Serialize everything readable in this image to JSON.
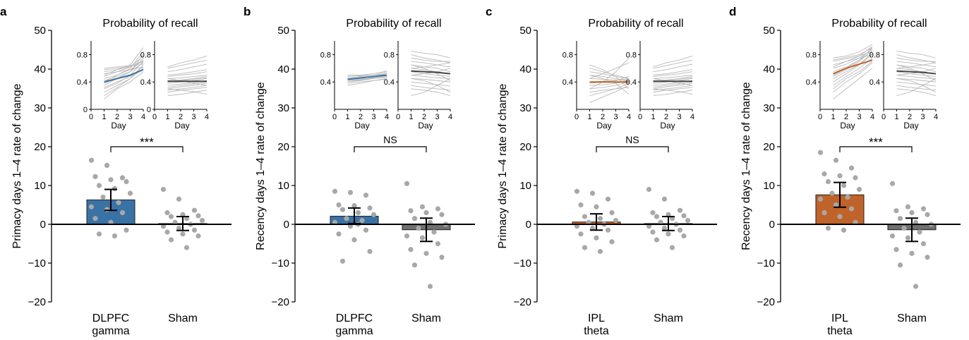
{
  "panel_letters": [
    "a",
    "b",
    "c",
    "d"
  ],
  "colors": {
    "dlpfc": "#3b72a6",
    "ipl": "#c0632a",
    "sham": "#6f6f6f",
    "dots": "#a8a8a8",
    "subject_lines": "#b9b9b9",
    "inset_sham_mean": "#444444"
  },
  "chart_data": [
    {
      "type": "bar",
      "panel": "a",
      "ylabel": "Primacy days 1–4 rate of change",
      "ylim": [
        -20,
        50
      ],
      "yticks": [
        -20,
        -10,
        0,
        10,
        20,
        30,
        40,
        50
      ],
      "categories": [
        "DLPFC\ngamma",
        "Sham"
      ],
      "bar_colors": [
        "dlpfc",
        "sham"
      ],
      "values": [
        6.3,
        0.2
      ],
      "error": [
        [
          3.6,
          9.0
        ],
        [
          -1.6,
          2.0
        ]
      ],
      "points": [
        [
          16.5,
          15.2,
          12.0,
          12.3,
          11.5,
          11.0,
          10.0,
          9.2,
          8.0,
          7.0,
          5.6,
          4.5,
          3.8,
          3.0,
          1.5,
          0.5,
          -1.5,
          -2.5,
          -3.0
        ],
        [
          9.0,
          6.5,
          3.6,
          3.0,
          2.5,
          2.2,
          2.0,
          1.5,
          1.0,
          0.5,
          0.0,
          -0.5,
          -1.0,
          -1.5,
          -2.0,
          -2.5,
          -3.0,
          -4.0,
          -6.0
        ]
      ],
      "significance": "***",
      "inset": {
        "title": "Probability of recall",
        "xlabel": "Day",
        "x": [
          1,
          2,
          3,
          4
        ],
        "xticks": [
          0,
          1,
          2,
          3,
          4
        ],
        "yticks": [
          0,
          0.4,
          0.8
        ],
        "ylim": [
          0,
          1
        ],
        "active_color": "dlpfc",
        "active_mean": [
          0.4,
          0.45,
          0.5,
          0.58
        ],
        "sham_mean": [
          0.41,
          0.41,
          0.41,
          0.41
        ],
        "active_lines": [
          [
            0.15,
            0.3,
            0.4,
            0.55
          ],
          [
            0.2,
            0.32,
            0.45,
            0.65
          ],
          [
            0.25,
            0.35,
            0.45,
            0.6
          ],
          [
            0.3,
            0.38,
            0.5,
            0.7
          ],
          [
            0.32,
            0.4,
            0.48,
            0.62
          ],
          [
            0.35,
            0.45,
            0.55,
            0.75
          ],
          [
            0.38,
            0.45,
            0.55,
            0.8
          ],
          [
            0.4,
            0.5,
            0.6,
            0.85
          ],
          [
            0.42,
            0.48,
            0.55,
            0.68
          ],
          [
            0.45,
            0.5,
            0.58,
            0.72
          ],
          [
            0.48,
            0.55,
            0.62,
            0.78
          ],
          [
            0.5,
            0.58,
            0.65,
            0.9
          ],
          [
            0.52,
            0.55,
            0.58,
            0.62
          ],
          [
            0.55,
            0.58,
            0.62,
            0.7
          ],
          [
            0.58,
            0.6,
            0.63,
            0.66
          ],
          [
            0.6,
            0.62,
            0.64,
            0.7
          ]
        ],
        "sham_lines": [
          [
            0.2,
            0.22,
            0.25,
            0.28
          ],
          [
            0.25,
            0.28,
            0.3,
            0.32
          ],
          [
            0.28,
            0.3,
            0.32,
            0.35
          ],
          [
            0.3,
            0.33,
            0.35,
            0.38
          ],
          [
            0.32,
            0.35,
            0.37,
            0.4
          ],
          [
            0.35,
            0.37,
            0.39,
            0.42
          ],
          [
            0.38,
            0.4,
            0.42,
            0.45
          ],
          [
            0.4,
            0.42,
            0.44,
            0.46
          ],
          [
            0.42,
            0.43,
            0.45,
            0.48
          ],
          [
            0.45,
            0.46,
            0.48,
            0.5
          ],
          [
            0.48,
            0.5,
            0.52,
            0.55
          ],
          [
            0.5,
            0.52,
            0.55,
            0.58
          ],
          [
            0.55,
            0.58,
            0.62,
            0.66
          ],
          [
            0.6,
            0.64,
            0.68,
            0.72
          ],
          [
            0.62,
            0.68,
            0.72,
            0.78
          ],
          [
            0.3,
            0.28,
            0.26,
            0.22
          ],
          [
            0.45,
            0.42,
            0.38,
            0.35
          ]
        ]
      }
    },
    {
      "type": "bar",
      "panel": "b",
      "ylabel": "Recency days 1–4 rate of change",
      "ylim": [
        -20,
        50
      ],
      "yticks": [
        -20,
        -10,
        0,
        10,
        20,
        30,
        40,
        50
      ],
      "categories": [
        "DLPFC\ngamma",
        "Sham"
      ],
      "bar_colors": [
        "dlpfc",
        "sham"
      ],
      "values": [
        2.1,
        -1.4
      ],
      "error": [
        [
          0.2,
          4.2
        ],
        [
          -4.4,
          1.6
        ]
      ],
      "points": [
        [
          8.5,
          8.2,
          7.5,
          5.0,
          4.8,
          4.2,
          3.8,
          3.0,
          2.5,
          1.5,
          1.0,
          0.5,
          -0.5,
          -1.5,
          -2.5,
          -4.0,
          -7.0,
          -9.5,
          0.0
        ],
        [
          10.5,
          4.5,
          4.0,
          3.5,
          3.0,
          2.5,
          1.5,
          0.5,
          0.0,
          -1.0,
          -2.0,
          -3.0,
          -3.5,
          -5.0,
          -6.5,
          -7.5,
          -8.5,
          -10.5,
          -16.0
        ]
      ],
      "significance": "NS",
      "inset": {
        "title": "Probability of recall",
        "xlabel": "Day",
        "x": [
          1,
          2,
          3,
          4
        ],
        "xticks": [
          0,
          1,
          2,
          3,
          4
        ],
        "yticks": [
          0.4,
          0.8
        ],
        "ylim": [
          0,
          1
        ],
        "active_color": "dlpfc",
        "active_mean": [
          0.44,
          0.46,
          0.48,
          0.5
        ],
        "sham_mean": [
          0.56,
          0.55,
          0.54,
          0.52
        ],
        "active_lines": [
          [
            0.35,
            0.38,
            0.42,
            0.45
          ],
          [
            0.38,
            0.4,
            0.42,
            0.44
          ],
          [
            0.4,
            0.42,
            0.45,
            0.48
          ],
          [
            0.42,
            0.43,
            0.45,
            0.47
          ],
          [
            0.44,
            0.45,
            0.48,
            0.52
          ],
          [
            0.46,
            0.48,
            0.5,
            0.55
          ],
          [
            0.48,
            0.49,
            0.5,
            0.52
          ],
          [
            0.5,
            0.5,
            0.52,
            0.56
          ],
          [
            0.4,
            0.43,
            0.47,
            0.53
          ],
          [
            0.43,
            0.44,
            0.46,
            0.49
          ]
        ],
        "sham_lines": [
          [
            0.85,
            0.82,
            0.8,
            0.75
          ],
          [
            0.8,
            0.75,
            0.72,
            0.68
          ],
          [
            0.75,
            0.72,
            0.7,
            0.7
          ],
          [
            0.7,
            0.68,
            0.65,
            0.62
          ],
          [
            0.65,
            0.62,
            0.6,
            0.55
          ],
          [
            0.6,
            0.58,
            0.55,
            0.52
          ],
          [
            0.55,
            0.52,
            0.5,
            0.48
          ],
          [
            0.5,
            0.48,
            0.46,
            0.45
          ],
          [
            0.45,
            0.44,
            0.42,
            0.4
          ],
          [
            0.4,
            0.38,
            0.36,
            0.34
          ],
          [
            0.35,
            0.32,
            0.3,
            0.28
          ],
          [
            0.3,
            0.28,
            0.25,
            0.2
          ],
          [
            0.2,
            0.25,
            0.35,
            0.45
          ],
          [
            0.5,
            0.52,
            0.55,
            0.6
          ],
          [
            0.6,
            0.62,
            0.65,
            0.68
          ],
          [
            0.65,
            0.6,
            0.52,
            0.42
          ],
          [
            0.45,
            0.42,
            0.35,
            0.25
          ]
        ]
      }
    },
    {
      "type": "bar",
      "panel": "c",
      "ylabel": "Primacy days 1–4 rate of change",
      "ylim": [
        -20,
        50
      ],
      "yticks": [
        -20,
        -10,
        0,
        10,
        20,
        30,
        40,
        50
      ],
      "categories": [
        "IPL\ntheta",
        "Sham"
      ],
      "bar_colors": [
        "ipl",
        "sham"
      ],
      "values": [
        0.6,
        0.2
      ],
      "error": [
        [
          -1.5,
          2.7
        ],
        [
          -1.6,
          2.0
        ]
      ],
      "points": [
        [
          8.5,
          8.0,
          6.5,
          5.0,
          4.5,
          3.0,
          2.0,
          1.5,
          1.0,
          0.5,
          0.0,
          -0.5,
          -1.0,
          -1.5,
          -2.5,
          -3.5,
          -4.5,
          -6.0,
          -7.0
        ],
        [
          9.0,
          6.5,
          3.6,
          3.0,
          2.5,
          2.2,
          2.0,
          1.5,
          1.0,
          0.5,
          0.0,
          -0.5,
          -1.0,
          -1.5,
          -2.0,
          -2.5,
          -3.0,
          -4.0,
          -6.0
        ]
      ],
      "significance": "NS",
      "inset": {
        "title": "Probability of recall",
        "xlabel": "Day",
        "x": [
          1,
          2,
          3,
          4
        ],
        "xticks": [
          0,
          1,
          2,
          3,
          4
        ],
        "yticks": [
          0.4,
          0.8
        ],
        "ylim": [
          0,
          1
        ],
        "active_color": "ipl",
        "active_mean": [
          0.4,
          0.4,
          0.4,
          0.4
        ],
        "sham_mean": [
          0.41,
          0.41,
          0.41,
          0.41
        ],
        "active_lines": [
          [
            0.1,
            0.18,
            0.26,
            0.35
          ],
          [
            0.2,
            0.25,
            0.3,
            0.38
          ],
          [
            0.25,
            0.28,
            0.3,
            0.32
          ],
          [
            0.3,
            0.32,
            0.35,
            0.4
          ],
          [
            0.35,
            0.36,
            0.38,
            0.42
          ],
          [
            0.38,
            0.4,
            0.42,
            0.45
          ],
          [
            0.4,
            0.41,
            0.42,
            0.48
          ],
          [
            0.45,
            0.44,
            0.43,
            0.42
          ],
          [
            0.5,
            0.48,
            0.45,
            0.4
          ],
          [
            0.55,
            0.52,
            0.48,
            0.45
          ],
          [
            0.6,
            0.55,
            0.5,
            0.45
          ],
          [
            0.45,
            0.52,
            0.6,
            0.68
          ],
          [
            0.3,
            0.4,
            0.55,
            0.75
          ],
          [
            0.65,
            0.58,
            0.48,
            0.3
          ],
          [
            0.5,
            0.45,
            0.38,
            0.22
          ]
        ],
        "sham_lines": [
          [
            0.2,
            0.22,
            0.25,
            0.28
          ],
          [
            0.25,
            0.28,
            0.3,
            0.32
          ],
          [
            0.28,
            0.3,
            0.32,
            0.35
          ],
          [
            0.3,
            0.33,
            0.35,
            0.38
          ],
          [
            0.32,
            0.35,
            0.37,
            0.4
          ],
          [
            0.35,
            0.37,
            0.39,
            0.42
          ],
          [
            0.38,
            0.4,
            0.42,
            0.45
          ],
          [
            0.4,
            0.42,
            0.44,
            0.46
          ],
          [
            0.42,
            0.43,
            0.45,
            0.48
          ],
          [
            0.45,
            0.46,
            0.48,
            0.5
          ],
          [
            0.48,
            0.5,
            0.52,
            0.55
          ],
          [
            0.5,
            0.52,
            0.55,
            0.58
          ],
          [
            0.55,
            0.58,
            0.62,
            0.66
          ],
          [
            0.6,
            0.64,
            0.68,
            0.72
          ],
          [
            0.62,
            0.68,
            0.72,
            0.78
          ],
          [
            0.3,
            0.28,
            0.26,
            0.22
          ],
          [
            0.45,
            0.42,
            0.38,
            0.35
          ]
        ]
      }
    },
    {
      "type": "bar",
      "panel": "d",
      "ylabel": "Recency days 1–4 rate of change",
      "ylim": [
        -20,
        50
      ],
      "yticks": [
        -20,
        -10,
        0,
        10,
        20,
        30,
        40,
        50
      ],
      "categories": [
        "IPL\ntheta",
        "Sham"
      ],
      "bar_colors": [
        "ipl",
        "sham"
      ],
      "values": [
        7.6,
        -1.4
      ],
      "error": [
        [
          4.4,
          10.8
        ],
        [
          -4.4,
          1.6
        ]
      ],
      "points": [
        [
          18.5,
          16.5,
          14.5,
          13.0,
          12.5,
          12.0,
          11.0,
          10.0,
          9.0,
          8.0,
          7.0,
          6.5,
          5.0,
          4.0,
          3.0,
          2.0,
          0.5,
          -1.0,
          -1.5
        ],
        [
          10.5,
          4.5,
          4.0,
          3.5,
          3.0,
          2.5,
          1.5,
          0.5,
          0.0,
          -1.0,
          -2.0,
          -3.0,
          -3.5,
          -5.0,
          -6.5,
          -7.5,
          -8.5,
          -10.5,
          -16.0
        ]
      ],
      "significance": "***",
      "inset": {
        "title": "Probability of recall",
        "xlabel": "Day",
        "x": [
          1,
          2,
          3,
          4
        ],
        "xticks": [
          0,
          1,
          2,
          3,
          4
        ],
        "yticks": [
          0.4,
          0.8
        ],
        "ylim": [
          0,
          1
        ],
        "active_color": "ipl",
        "active_mean": [
          0.52,
          0.6,
          0.66,
          0.72
        ],
        "sham_mean": [
          0.56,
          0.55,
          0.54,
          0.52
        ],
        "active_lines": [
          [
            0.15,
            0.3,
            0.45,
            0.6
          ],
          [
            0.25,
            0.4,
            0.52,
            0.68
          ],
          [
            0.3,
            0.45,
            0.55,
            0.7
          ],
          [
            0.35,
            0.48,
            0.6,
            0.75
          ],
          [
            0.4,
            0.52,
            0.65,
            0.8
          ],
          [
            0.45,
            0.55,
            0.66,
            0.82
          ],
          [
            0.48,
            0.58,
            0.7,
            0.86
          ],
          [
            0.5,
            0.6,
            0.72,
            0.9
          ],
          [
            0.55,
            0.62,
            0.72,
            0.85
          ],
          [
            0.6,
            0.66,
            0.75,
            0.88
          ],
          [
            0.62,
            0.7,
            0.78,
            0.92
          ],
          [
            0.65,
            0.7,
            0.75,
            0.8
          ],
          [
            0.7,
            0.74,
            0.78,
            0.85
          ],
          [
            0.72,
            0.76,
            0.8,
            0.9
          ],
          [
            0.75,
            0.78,
            0.84,
            0.95
          ]
        ],
        "sham_lines": [
          [
            0.85,
            0.82,
            0.8,
            0.75
          ],
          [
            0.8,
            0.75,
            0.72,
            0.68
          ],
          [
            0.75,
            0.72,
            0.7,
            0.7
          ],
          [
            0.7,
            0.68,
            0.65,
            0.62
          ],
          [
            0.65,
            0.62,
            0.6,
            0.55
          ],
          [
            0.6,
            0.58,
            0.55,
            0.52
          ],
          [
            0.55,
            0.52,
            0.5,
            0.48
          ],
          [
            0.5,
            0.48,
            0.46,
            0.45
          ],
          [
            0.45,
            0.44,
            0.42,
            0.4
          ],
          [
            0.4,
            0.38,
            0.36,
            0.34
          ],
          [
            0.35,
            0.32,
            0.3,
            0.28
          ],
          [
            0.3,
            0.28,
            0.25,
            0.2
          ],
          [
            0.2,
            0.25,
            0.35,
            0.45
          ],
          [
            0.5,
            0.52,
            0.55,
            0.6
          ],
          [
            0.6,
            0.62,
            0.65,
            0.68
          ],
          [
            0.65,
            0.6,
            0.52,
            0.42
          ],
          [
            0.45,
            0.42,
            0.35,
            0.25
          ]
        ]
      }
    }
  ]
}
